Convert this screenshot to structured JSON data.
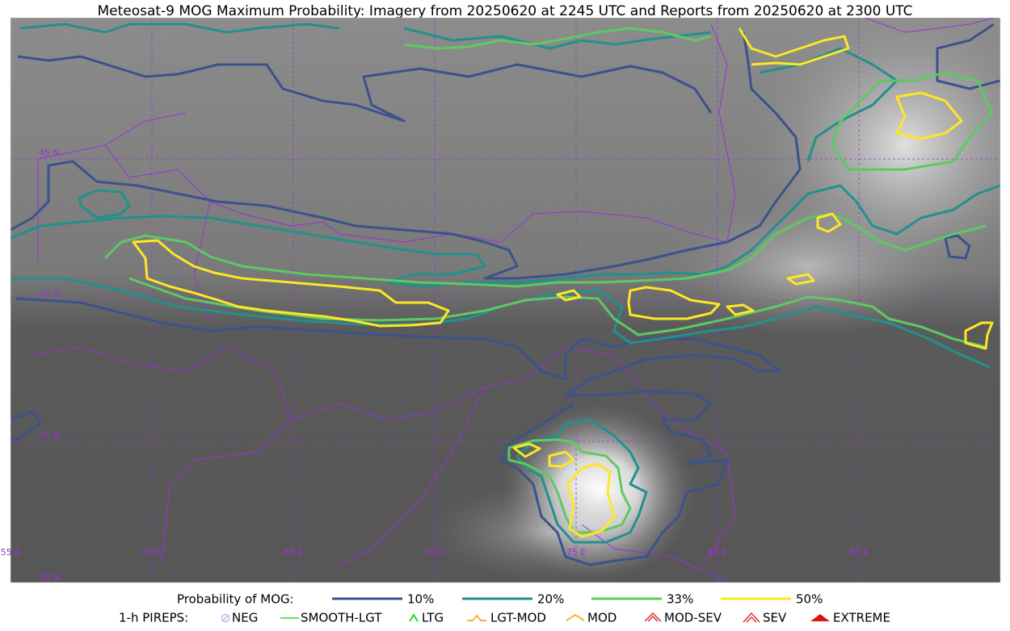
{
  "title": "Meteosat-9 MOG Maximum Probability: Imagery from 20250620 at 2245 UTC and Reports from 20250620 at 2300 UTC",
  "map": {
    "latitude_labels": [
      "45 N",
      "40 N",
      "35 N",
      "30 N"
    ],
    "longitude_labels": [
      "55 E",
      "60 E",
      "65 E",
      "70 E",
      "75 E",
      "80 E",
      "85 E"
    ]
  },
  "legend": {
    "probability": {
      "label": "Probability of MOG:",
      "items": [
        "10%",
        "20%",
        "33%",
        "50%"
      ]
    },
    "pireps": {
      "label": "1-h PIREPS:",
      "items": [
        "NEG",
        "SMOOTH-LGT",
        "LTG",
        "LGT-MOD",
        "MOD",
        "MOD-SEV",
        "SEV",
        "EXTREME"
      ]
    }
  }
}
